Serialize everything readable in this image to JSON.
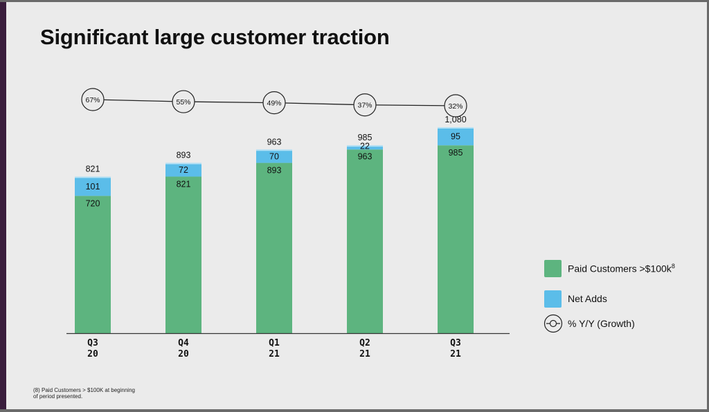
{
  "title": "Significant large customer traction",
  "colors": {
    "paid": "#5db47f",
    "net_adds": "#5bbde9",
    "line": "#222222",
    "background": "#ebebeb"
  },
  "chart_data": {
    "type": "bar",
    "stacked": true,
    "categories": [
      [
        "Q3",
        "20"
      ],
      [
        "Q4",
        "20"
      ],
      [
        "Q1",
        "21"
      ],
      [
        "Q2",
        "21"
      ],
      [
        "Q3",
        "21"
      ]
    ],
    "series": [
      {
        "name": "Paid Customers >$100k",
        "values": [
          720,
          821,
          893,
          963,
          985
        ]
      },
      {
        "name": "Net Adds",
        "values": [
          101,
          72,
          70,
          22,
          95
        ]
      }
    ],
    "totals": [
      "821",
      "893",
      "963",
      "985",
      "1,080"
    ],
    "growth": {
      "name": "% Y/Y (Growth)",
      "labels": [
        "67%",
        "55%",
        "49%",
        "37%",
        "32%"
      ],
      "values": [
        67,
        55,
        49,
        37,
        32
      ]
    },
    "ylim": [
      0,
      1080
    ],
    "grid": false,
    "legend_position": "right"
  },
  "legend": {
    "paid": {
      "label": "Paid Customers >$100k",
      "sup": "8"
    },
    "net_adds": {
      "label": "Net Adds"
    },
    "growth": {
      "label": "% Y/Y (Growth)"
    }
  },
  "footnote": "(8) Paid Customers > $100K at beginning of period presented."
}
